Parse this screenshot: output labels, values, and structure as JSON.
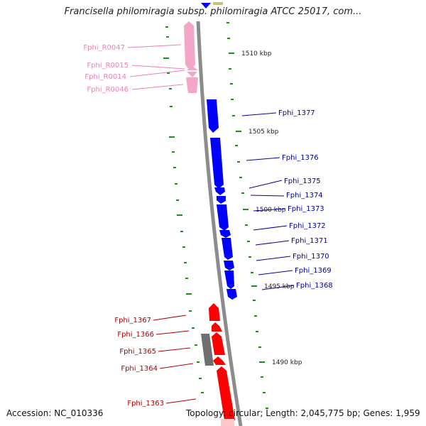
{
  "title": "Francisella philomiragia subsp. philomiragia ATCC 25017, com...",
  "footer": {
    "accession": "Accession: NC_010336",
    "topology": "Topology: circular; Length: 2,045,775 bp; Genes: 1,959"
  },
  "colors": {
    "rna": "#f4a6c8",
    "rna_label": "#ee7fb5",
    "forward": "#0000ff",
    "forward_label": "#00009c",
    "reverse": "#ff0000",
    "reverse_label": "#b00000",
    "pseudo": "#6f6f6f",
    "backbone": "#8c8c8c",
    "tick": "#1a8f1a"
  },
  "kbp_labels": [
    "1510 kbp",
    "1505 kbp",
    "1500 kbp",
    "1495 kbp",
    "1490 kbp"
  ],
  "rna_genes": [
    "Fphi_R0047",
    "Fphi_R0015",
    "Fphi_R0014",
    "Fphi_R0046"
  ],
  "forward_genes": [
    "Fphi_1377",
    "Fphi_1376",
    "Fphi_1375",
    "Fphi_1374",
    "Fphi_1373",
    "Fphi_1372",
    "Fphi_1371",
    "Fphi_1370",
    "Fphi_1369",
    "Fphi_1368"
  ],
  "reverse_genes": [
    "Fphi_1367",
    "Fphi_1366",
    "Fphi_1365",
    "Fphi_1364",
    "Fphi_1363"
  ]
}
